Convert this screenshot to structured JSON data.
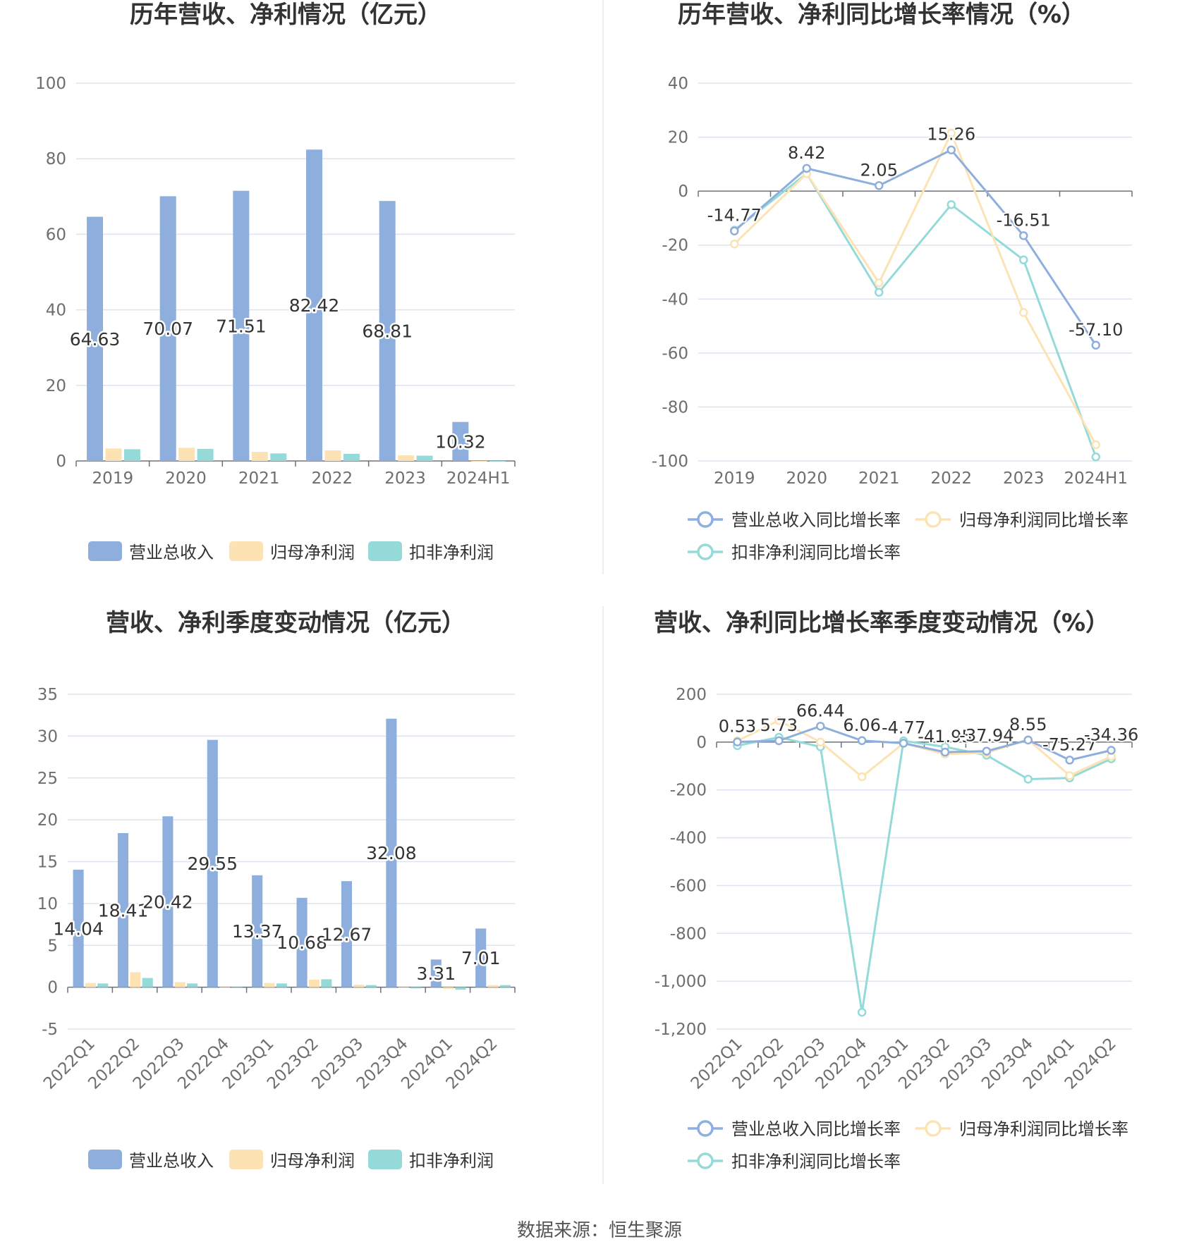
{
  "colors": {
    "revenue": "#8eafdd",
    "net_profit": "#fde3b3",
    "deducted_profit": "#94dad9",
    "gridline": "#dde3ef",
    "axis": "#6e7079",
    "divider": "#eeeeee"
  },
  "footer": {
    "source": "数据来源：恒生聚源"
  },
  "chart_data": [
    {
      "id": "annual-revenue-profit",
      "type": "bar",
      "title": "历年营收、净利情况（亿元）",
      "categories": [
        "2019",
        "2020",
        "2021",
        "2022",
        "2023",
        "2024H1"
      ],
      "series": [
        {
          "name": "营业总收入",
          "values": [
            64.63,
            70.07,
            71.51,
            82.42,
            68.81,
            10.32
          ],
          "labels": [
            "64.63",
            "70.07",
            "71.51",
            "82.42",
            "68.81",
            "10.32"
          ]
        },
        {
          "name": "归母净利润",
          "values": [
            3.3,
            3.5,
            2.4,
            2.8,
            1.5,
            0.01
          ]
        },
        {
          "name": "扣非净利润",
          "values": [
            3.1,
            3.2,
            2.0,
            1.9,
            1.4,
            0.01
          ]
        }
      ],
      "yticks": [
        "0",
        "20",
        "40",
        "60",
        "80",
        "100"
      ],
      "ylim": [
        0,
        100
      ],
      "legend": "bottom"
    },
    {
      "id": "annual-yoy-growth",
      "type": "line",
      "title": "历年营收、净利同比增长率情况（%）",
      "categories": [
        "2019",
        "2020",
        "2021",
        "2022",
        "2023",
        "2024H1"
      ],
      "series": [
        {
          "name": "营业总收入同比增长率",
          "values": [
            -14.77,
            8.42,
            2.05,
            15.26,
            -16.51,
            -57.1
          ],
          "labels": [
            "-14.77",
            "8.42",
            "2.05",
            "15.26",
            "-16.51",
            "-57.10"
          ]
        },
        {
          "name": "归母净利润同比增长率",
          "values": [
            -19.6,
            6.5,
            -34.0,
            21.5,
            -45.0,
            -94.0
          ]
        },
        {
          "name": "扣非净利润同比增长率",
          "values": [
            -14.5,
            6.5,
            -37.5,
            -5.0,
            -25.5,
            -98.5
          ]
        }
      ],
      "yticks": [
        "-100",
        "-80",
        "-60",
        "-40",
        "-20",
        "0",
        "20",
        "40"
      ],
      "ylim": [
        -100,
        40
      ],
      "legend": "bottom"
    },
    {
      "id": "quarterly-revenue-profit",
      "type": "bar",
      "title": "营收、净利季度变动情况（亿元）",
      "categories": [
        "2022Q1",
        "2022Q2",
        "2022Q3",
        "2022Q4",
        "2023Q1",
        "2023Q2",
        "2023Q3",
        "2023Q4",
        "2024Q1",
        "2024Q2"
      ],
      "series": [
        {
          "name": "营业总收入",
          "values": [
            14.04,
            18.41,
            20.42,
            29.55,
            13.37,
            10.68,
            12.67,
            32.08,
            3.31,
            7.01
          ],
          "labels": [
            "14.04",
            "18.41",
            "20.42",
            "29.55",
            "13.37",
            "10.68",
            "12.67",
            "32.08",
            "3.31",
            "7.01"
          ]
        },
        {
          "name": "归母净利润",
          "values": [
            0.5,
            1.8,
            0.6,
            -0.1,
            0.5,
            0.9,
            0.3,
            -0.1,
            -0.2,
            0.25
          ]
        },
        {
          "name": "扣非净利润",
          "values": [
            0.45,
            1.1,
            0.45,
            -0.1,
            0.45,
            0.95,
            0.25,
            -0.15,
            -0.3,
            0.25
          ]
        }
      ],
      "yticks": [
        "-5",
        "0",
        "5",
        "10",
        "15",
        "20",
        "25",
        "30",
        "35"
      ],
      "ylim": [
        -5,
        35
      ],
      "legend": "bottom"
    },
    {
      "id": "quarterly-yoy-growth",
      "type": "line",
      "title": "营收、净利同比增长率季度变动情况（%）",
      "categories": [
        "2022Q1",
        "2022Q2",
        "2022Q3",
        "2022Q4",
        "2023Q1",
        "2023Q2",
        "2023Q3",
        "2023Q4",
        "2024Q1",
        "2024Q2"
      ],
      "series": [
        {
          "name": "营业总收入同比增长率",
          "values": [
            0.53,
            5.73,
            66.44,
            6.06,
            -4.77,
            -41.95,
            -37.94,
            8.55,
            -75.27,
            -34.36
          ],
          "labels": [
            "0.53",
            "5.73",
            "66.44",
            "6.06",
            "-4.77",
            "-41.95",
            "-37.94",
            "8.55",
            "-75.27",
            "-34.36"
          ]
        },
        {
          "name": "归母净利润同比增长率",
          "values": [
            5.0,
            90.0,
            0.0,
            -145.0,
            -5.0,
            -50.0,
            -45.0,
            10.0,
            -140.0,
            -60.0
          ]
        },
        {
          "name": "扣非净利润同比增长率",
          "values": [
            -15.0,
            20.0,
            -20.0,
            -1130.0,
            5.0,
            -20.0,
            -55.0,
            -155.0,
            -150.0,
            -70.0
          ]
        }
      ],
      "yticks": [
        "-1,200",
        "-1,000",
        "-800",
        "-600",
        "-400",
        "-200",
        "0",
        "200"
      ],
      "ylim": [
        -1200,
        200
      ],
      "legend": "bottom"
    }
  ]
}
